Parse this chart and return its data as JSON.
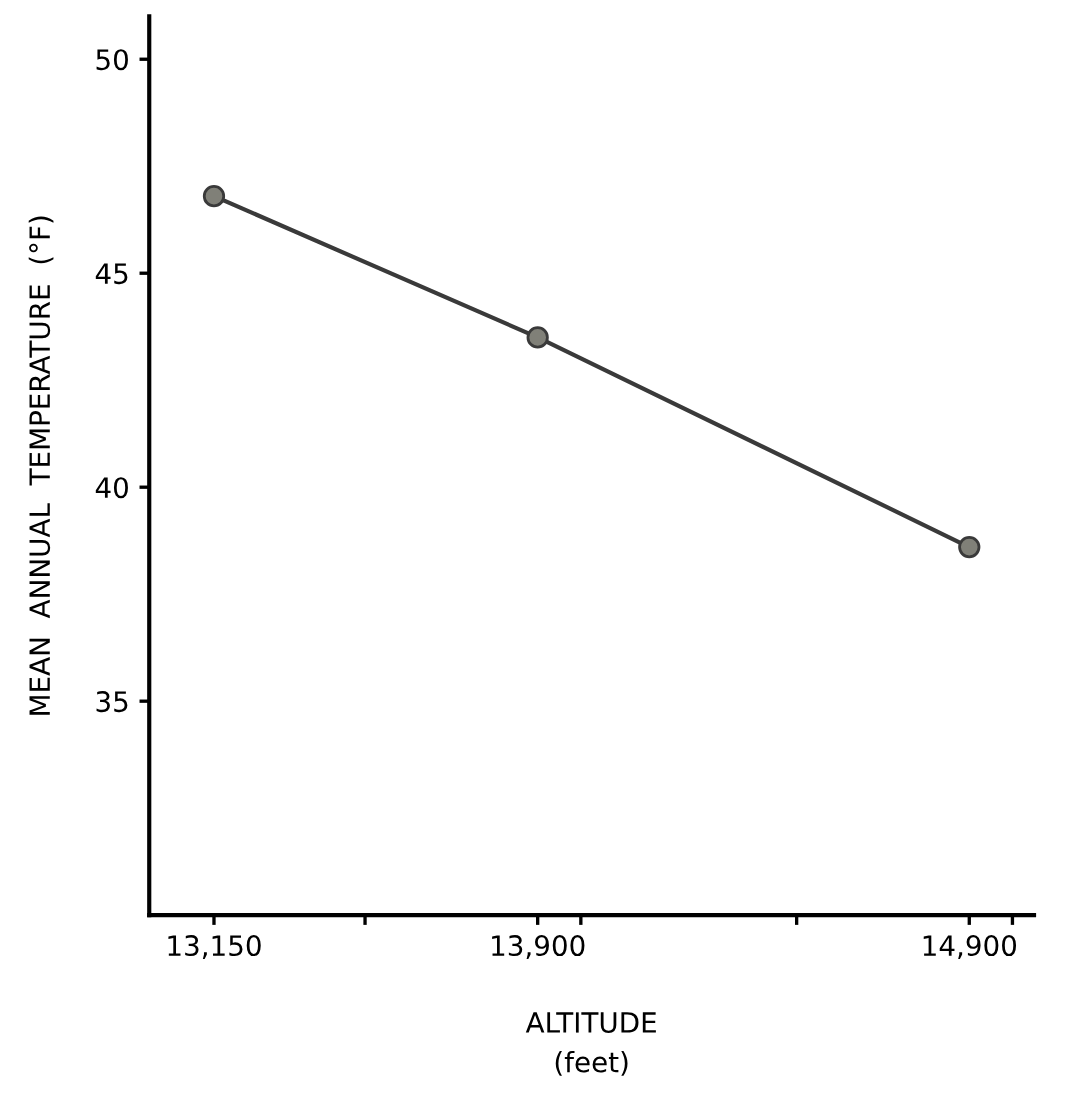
{
  "chart_data": {
    "type": "line",
    "xlabel": "ALTITUDE\n(feet)",
    "ylabel": "MEAN  ANNUAL  TEMPERATURE  (°F)",
    "x": [
      13150,
      13900,
      14900
    ],
    "series": [
      {
        "color": "#3a3a3a",
        "values": [
          46.8,
          43.5,
          38.6
        ]
      }
    ],
    "marker": "circle",
    "line_style": "solid",
    "grid": false,
    "legend": false,
    "xlim": [
      13000,
      15050
    ],
    "xticks": [
      {
        "value": 13150,
        "label": "13,150"
      },
      {
        "value": 13500,
        "label": null
      },
      {
        "value": 13900,
        "label": "13,900"
      },
      {
        "value": 14000,
        "label": null
      },
      {
        "value": 14500,
        "label": null
      },
      {
        "value": 14900,
        "label": "14,900"
      },
      {
        "value": 15000,
        "label": null
      }
    ],
    "ylim": [
      30,
      51
    ],
    "yticks": [
      35,
      40,
      45,
      50
    ]
  }
}
